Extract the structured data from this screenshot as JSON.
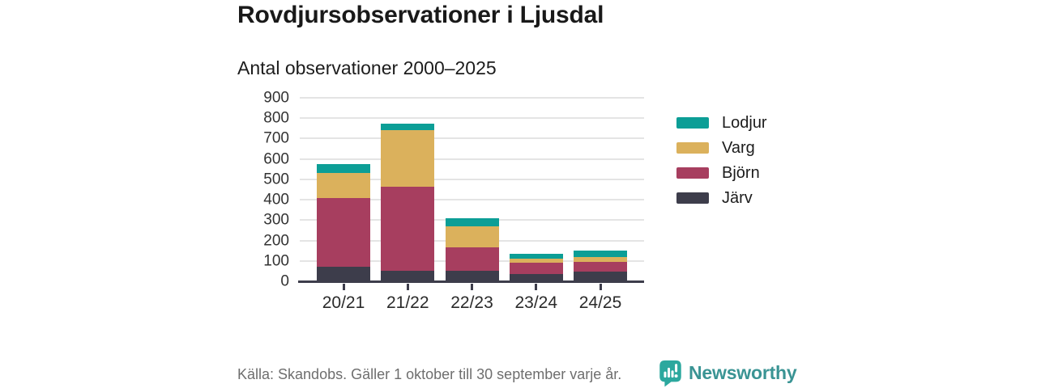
{
  "header": {
    "title": "Rovdjursobservationer i Ljusdal",
    "subtitle": "Antal observationer 2000–2025"
  },
  "chart_data": {
    "type": "bar",
    "stacked": true,
    "title": "Rovdjursobservationer i Ljusdal",
    "subtitle": "Antal observationer 2000–2025",
    "categories": [
      "20/21",
      "21/22",
      "22/23",
      "23/24",
      "24/25"
    ],
    "series": [
      {
        "name": "Järv",
        "color": "#3d3d4b",
        "values": [
          70,
          50,
          50,
          35,
          48
        ]
      },
      {
        "name": "Björn",
        "color": "#a73e5f",
        "values": [
          340,
          415,
          115,
          55,
          48
        ]
      },
      {
        "name": "Varg",
        "color": "#dbb15c",
        "values": [
          120,
          275,
          105,
          20,
          24
        ]
      },
      {
        "name": "Lodjur",
        "color": "#0c9e96",
        "values": [
          45,
          33,
          40,
          25,
          30
        ]
      }
    ],
    "legend_order": [
      "Lodjur",
      "Varg",
      "Björn",
      "Järv"
    ],
    "legend_position": "right",
    "xlabel": "",
    "ylabel": "",
    "ylim": [
      0,
      900
    ],
    "ytick_step": 100,
    "grid": true
  },
  "footer": {
    "source": "Källa: Skandobs. Gäller 1 oktober till 30 september varje år.",
    "brand": "Newsworthy"
  },
  "colors": {
    "lodjur_teal": "#0c9e96",
    "varg_gold": "#dbb15c",
    "bjorn_maroon": "#a73e5f",
    "jarv_slate": "#3d3d4b",
    "axis": "#3d3d4b",
    "gridline": "#e4e4e4",
    "brand_icon_teal": "#2ca89e",
    "brand_wordmark_teal": "#3a9494",
    "source_text_gray": "#6e6e6e"
  }
}
